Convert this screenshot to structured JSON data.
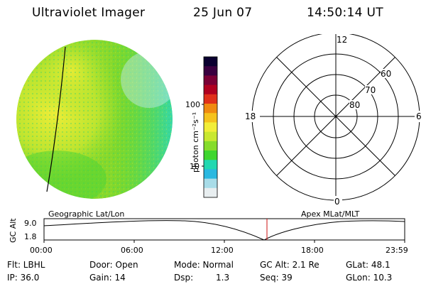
{
  "header": {
    "instrument": "Ultraviolet Imager",
    "date": "25 Jun 07",
    "time": "14:50:14 UT"
  },
  "colorbar": {
    "unit_label": "photon cm⁻²s⁻¹",
    "ticks": [
      "100",
      "10"
    ],
    "colors": [
      "#0a0030",
      "#3a0040",
      "#7a0036",
      "#b00020",
      "#e0301a",
      "#f08a10",
      "#f5c21c",
      "#f2ee38",
      "#c9e830",
      "#86dc2a",
      "#3ed62e",
      "#22d8b0",
      "#2ab8e0",
      "#a8dce8",
      "#e8eef0"
    ]
  },
  "polar_plot": {
    "mlt_labels": {
      "top": "12",
      "right": "6",
      "bottom": "0",
      "left": "18"
    },
    "lat_labels": [
      "60",
      "70",
      "80"
    ]
  },
  "timeline": {
    "axis_label": "GC Alt",
    "left_label": "Geographic Lat/Lon",
    "right_label": "Apex MLat/MLT",
    "y_ticks": [
      "9.0",
      "1.8"
    ],
    "x_ticks": [
      "00:00",
      "06:00",
      "12:00",
      "18:00",
      "23:59"
    ],
    "marker_time_hours": 14.837
  },
  "info": {
    "flt": "Flt: LBHL",
    "ip": "IP: 36.0",
    "door": "Door: Open",
    "gain": "Gain: 14",
    "mode": "Mode: Normal",
    "dsp_label": "Dsp:",
    "dsp_value": "1.3",
    "gc_alt": "GC Alt: 2.1 Re",
    "seq": "Seq: 39",
    "glat": "GLat: 48.1",
    "glon": "GLon: 10.3"
  }
}
